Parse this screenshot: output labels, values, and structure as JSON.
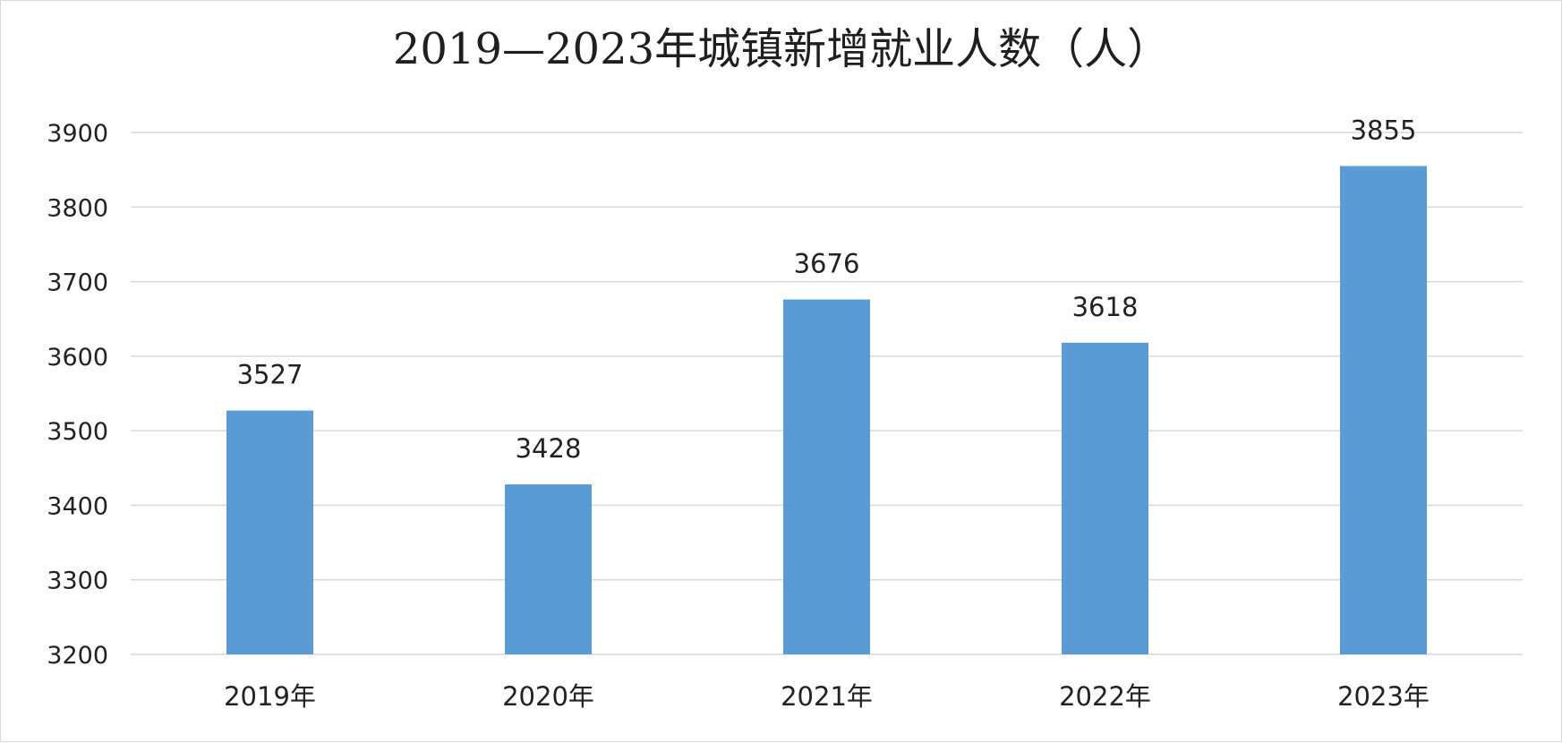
{
  "chart_data": {
    "type": "bar",
    "title": "2019—2023年城镇新增就业人数（人）",
    "categories": [
      "2019年",
      "2020年",
      "2021年",
      "2022年",
      "2023年"
    ],
    "values": [
      3527,
      3428,
      3676,
      3618,
      3855
    ],
    "ylim": [
      3200,
      3900
    ],
    "yticks": [
      3200,
      3300,
      3400,
      3500,
      3600,
      3700,
      3800,
      3900
    ],
    "grid": true,
    "legend": "none",
    "bar_color": "#5b9bd5",
    "grid_color": "#d9d9d9"
  }
}
